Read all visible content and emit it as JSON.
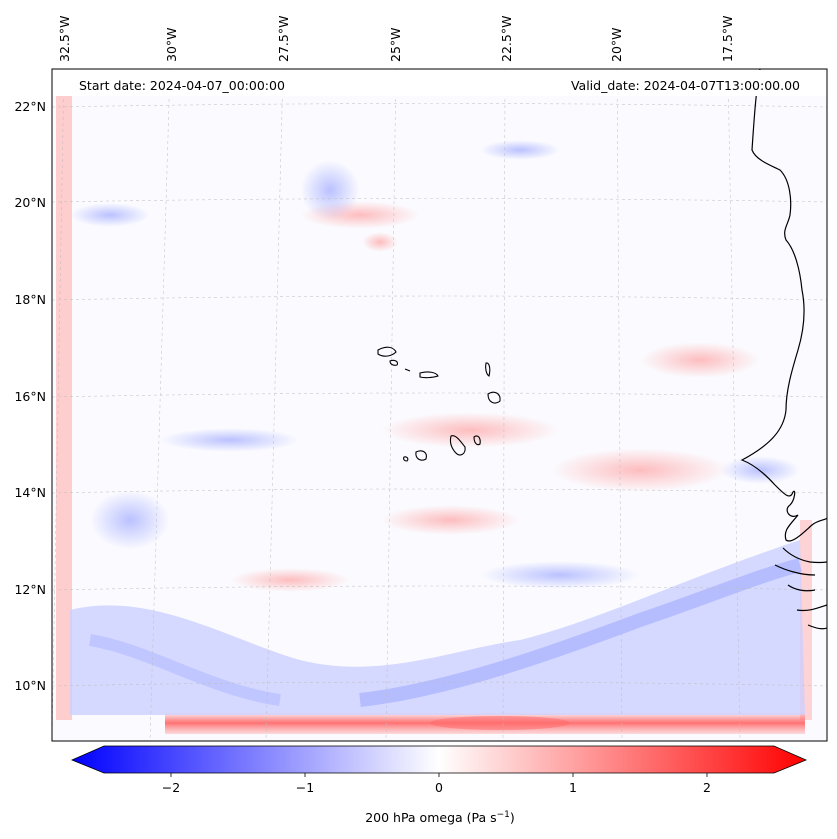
{
  "header": {
    "start_date": "Start date: 2024-04-07_00:00:00",
    "valid_date": "Valid_date: 2024-04-07T13:00:00.00"
  },
  "map": {
    "lon_ticks": [
      "32.5°W",
      "30°W",
      "27.5°W",
      "25°W",
      "22.5°W",
      "20°W",
      "17.5°W"
    ],
    "lat_ticks": [
      "22°N",
      "20°N",
      "18°N",
      "16°N",
      "14°N",
      "12°N",
      "10°N"
    ],
    "gridlines": true,
    "coastlines": true
  },
  "colorbar": {
    "label_main": "200 hPa omega (Pa s",
    "label_sup": "−1",
    "label_end": ")",
    "ticks": [
      "−2",
      "−1",
      "0",
      "1",
      "2"
    ],
    "cmap": "bwr",
    "range": [
      -2.75,
      2.75
    ],
    "colors": {
      "neg": "#0000ff",
      "zero": "#ffffff",
      "pos": "#ff0000"
    }
  }
}
